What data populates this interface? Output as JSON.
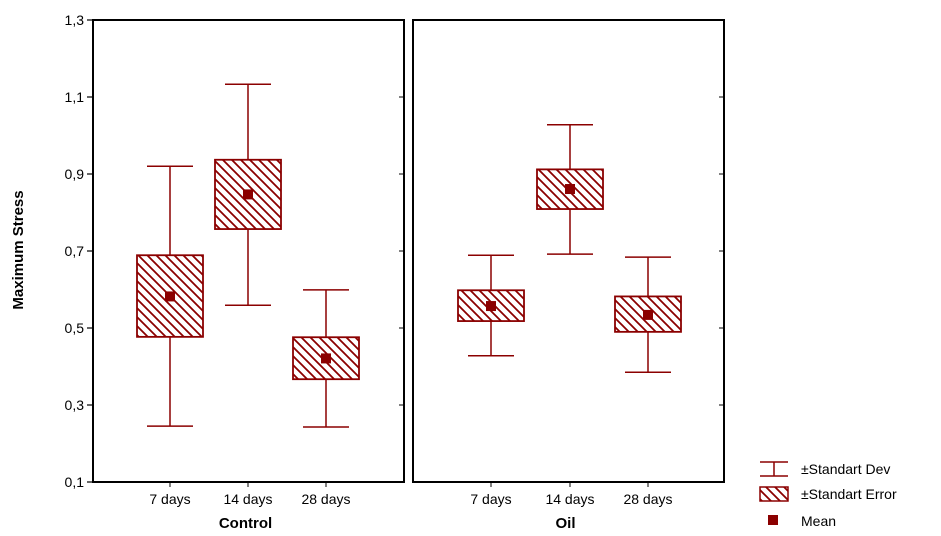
{
  "chart_data": {
    "type": "box",
    "ylabel": "Maximum Stress",
    "ylim": [
      0.1,
      1.3
    ],
    "yticks": [
      "0,1",
      "0,3",
      "0,5",
      "0,7",
      "0,9",
      "1,1",
      "1,3"
    ],
    "categories": [
      "7 days",
      "14 days",
      "28 days"
    ],
    "colors": {
      "box": "#8b0000",
      "frame": "#000000"
    },
    "panels": [
      {
        "name": "Control",
        "groups": [
          {
            "label": "7 days",
            "mean": 0.582,
            "se_low": 0.477,
            "se_high": 0.689,
            "sd_low": 0.245,
            "sd_high": 0.92
          },
          {
            "label": "14 days",
            "mean": 0.847,
            "se_low": 0.757,
            "se_high": 0.937,
            "sd_low": 0.559,
            "sd_high": 1.133
          },
          {
            "label": "28 days",
            "mean": 0.421,
            "se_low": 0.367,
            "se_high": 0.476,
            "sd_low": 0.243,
            "sd_high": 0.599
          }
        ]
      },
      {
        "name": "Oil",
        "groups": [
          {
            "label": "7 days",
            "mean": 0.557,
            "se_low": 0.518,
            "se_high": 0.598,
            "sd_low": 0.428,
            "sd_high": 0.689
          },
          {
            "label": "14 days",
            "mean": 0.861,
            "se_low": 0.809,
            "se_high": 0.912,
            "sd_low": 0.692,
            "sd_high": 1.028
          },
          {
            "label": "28 days",
            "mean": 0.534,
            "se_low": 0.49,
            "se_high": 0.582,
            "sd_low": 0.385,
            "sd_high": 0.684
          }
        ]
      }
    ],
    "legend": {
      "position": "bottom-right",
      "entries": [
        "±Standart Dev",
        "±Standart Error",
        "Mean"
      ]
    }
  }
}
